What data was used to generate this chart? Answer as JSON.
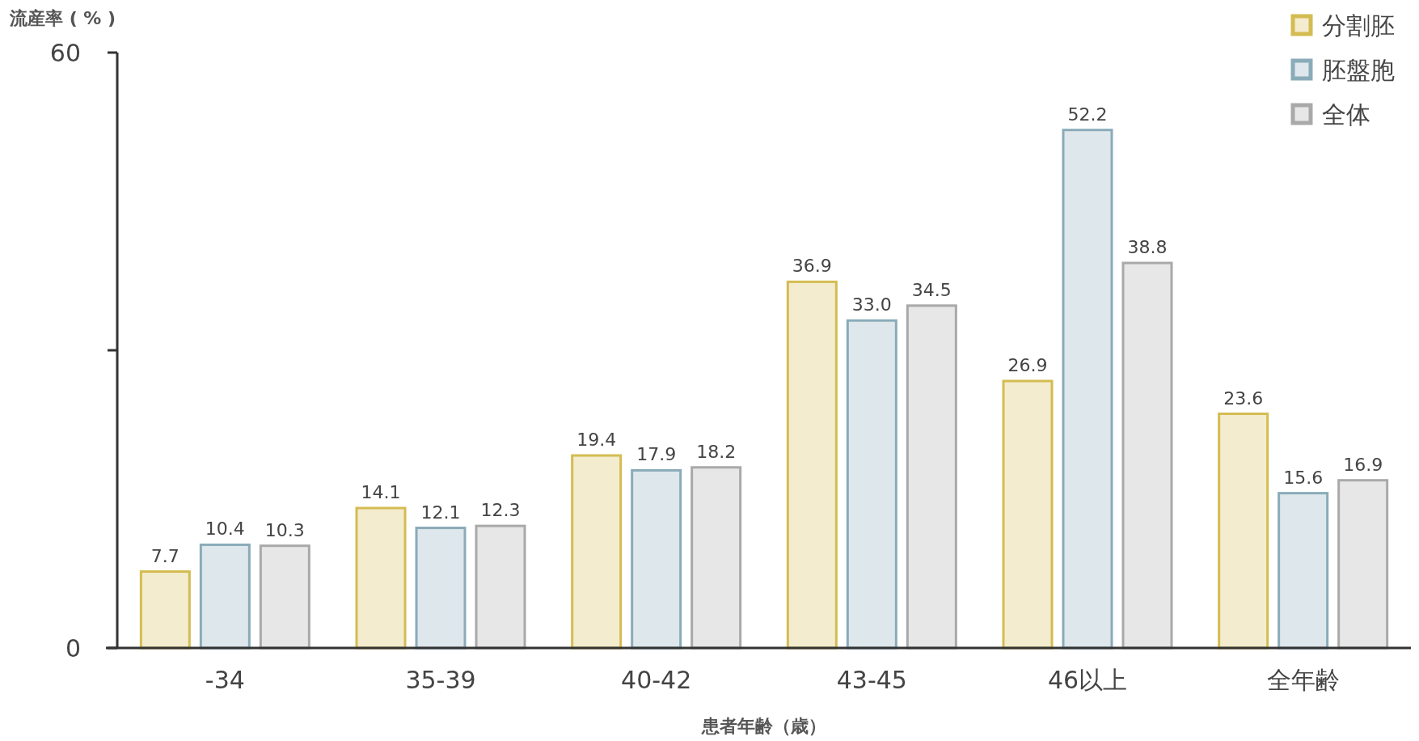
{
  "chart_data": {
    "type": "bar",
    "ylabel": "流産率 ( % )",
    "xlabel": "患者年齢（歳）",
    "categories": [
      "-34",
      "35-39",
      "40-42",
      "43-45",
      "46以上",
      "全年齢"
    ],
    "series": [
      {
        "name": "分割胚",
        "color": "#d4bc52",
        "values": [
          7.7,
          14.1,
          19.4,
          36.9,
          26.9,
          23.6
        ],
        "value_labels": [
          "7.7",
          "14.1",
          "19.4",
          "36.9",
          "26.9",
          "23.6"
        ]
      },
      {
        "name": "胚盤胞",
        "color": "#8aabb9",
        "values": [
          10.4,
          12.1,
          17.9,
          33.0,
          52.2,
          15.6
        ],
        "value_labels": [
          "10.4",
          "12.1",
          "17.9",
          "33.0",
          "52.2",
          "15.6"
        ]
      },
      {
        "name": "全体",
        "color": "#a9a9a9",
        "values": [
          10.3,
          12.3,
          18.2,
          34.5,
          38.8,
          16.9
        ],
        "value_labels": [
          "10.3",
          "12.3",
          "18.2",
          "34.5",
          "38.8",
          "16.9"
        ]
      }
    ],
    "ylim": [
      0,
      60
    ],
    "yticks": [
      0,
      {
        "value": 30,
        "label": null
      },
      60
    ],
    "legend": "top right"
  }
}
